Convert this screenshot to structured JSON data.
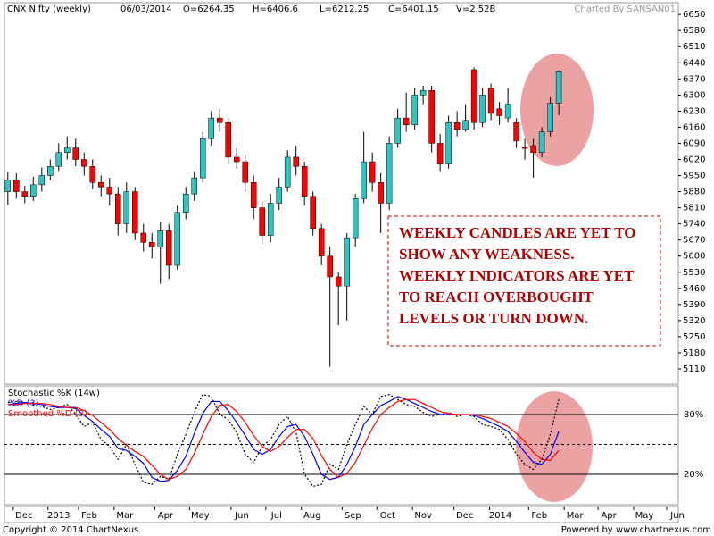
{
  "header": {
    "title": "CNX Nifty (weekly)",
    "date": "06/03/2014",
    "open": "O=6264.35",
    "high": "H=6406.6",
    "low": "L=6212.25",
    "close": "C=6401.15",
    "volume": "V=2.52B",
    "credit": "Charted By SANSAN01"
  },
  "chart_data": [
    {
      "type": "candlestick",
      "up_color": "#2ec4c4",
      "down_color": "#ff0000",
      "categories": [
        null,
        null,
        null,
        null,
        null,
        null,
        null,
        null,
        null,
        null,
        null,
        null,
        null,
        null,
        null,
        null,
        null,
        null,
        null,
        null,
        null,
        null,
        null,
        null,
        null,
        null,
        null,
        null,
        null,
        null,
        null,
        null,
        null,
        null,
        null,
        null,
        null,
        null,
        null,
        null,
        null,
        null,
        null,
        null,
        null,
        null,
        null,
        null,
        null,
        null,
        null,
        null,
        null,
        null,
        null,
        null,
        null,
        null,
        null,
        null,
        null,
        null,
        null,
        null,
        null,
        null
      ],
      "open": [
        5880,
        5930,
        5880,
        5860,
        5910,
        5950,
        5990,
        6050,
        6070,
        6020,
        5990,
        5920,
        5900,
        5870,
        5740,
        5880,
        5700,
        5660,
        5640,
        5710,
        5560,
        5790,
        5870,
        5940,
        6110,
        6200,
        6180,
        6030,
        6010,
        5920,
        5810,
        5690,
        5830,
        5900,
        6030,
        5990,
        5860,
        5720,
        5600,
        5510,
        5470,
        5680,
        5850,
        6010,
        5920,
        5830,
        6090,
        6200,
        6170,
        6300,
        6320,
        6090,
        6000,
        6180,
        6150,
        6410,
        6180,
        6330,
        6240,
        6200,
        6180,
        6075,
        6080,
        6050,
        6140,
        6264.35
      ],
      "high": [
        5965,
        5960,
        5905,
        5945,
        5985,
        6020,
        6090,
        6120,
        6110,
        6050,
        6020,
        5950,
        5940,
        5900,
        5920,
        5900,
        5740,
        5700,
        5750,
        5740,
        5820,
        5900,
        5970,
        6140,
        6230,
        6240,
        6200,
        6070,
        6040,
        5950,
        5840,
        5870,
        5940,
        6060,
        6080,
        6010,
        5880,
        5740,
        5640,
        5530,
        5700,
        5870,
        6140,
        6050,
        5960,
        6120,
        6240,
        6310,
        6330,
        6340,
        6340,
        6130,
        6210,
        6230,
        6260,
        6420,
        6330,
        6350,
        6270,
        6330,
        6200,
        6110,
        6110,
        6160,
        6290,
        6406.6
      ],
      "low": [
        5823,
        5850,
        5830,
        5840,
        5880,
        5930,
        5970,
        6020,
        5990,
        5950,
        5890,
        5860,
        5820,
        5690,
        5700,
        5670,
        5620,
        5590,
        5480,
        5500,
        5540,
        5760,
        5840,
        5920,
        6080,
        6140,
        6000,
        5980,
        5880,
        5760,
        5650,
        5660,
        5800,
        5880,
        5950,
        5820,
        5690,
        5560,
        5119,
        5300,
        5320,
        5640,
        5830,
        5880,
        5700,
        5800,
        6070,
        6140,
        6150,
        6260,
        6050,
        5970,
        5980,
        6120,
        6140,
        6150,
        6160,
        6190,
        6170,
        6180,
        6070,
        6020,
        5940,
        6030,
        6120,
        6212.25
      ],
      "close": [
        5930,
        5880,
        5860,
        5910,
        5950,
        5990,
        6050,
        6070,
        6020,
        5990,
        5920,
        5900,
        5870,
        5740,
        5880,
        5700,
        5660,
        5640,
        5710,
        5560,
        5790,
        5870,
        5940,
        6110,
        6200,
        6180,
        6030,
        6010,
        5920,
        5810,
        5690,
        5830,
        5900,
        6030,
        5990,
        5860,
        5720,
        5600,
        5510,
        5470,
        5680,
        5850,
        6010,
        5920,
        5830,
        6090,
        6200,
        6170,
        6300,
        6320,
        6090,
        6000,
        6180,
        6150,
        6190,
        6180,
        6300,
        6220,
        6210,
        6260,
        6100,
        6068,
        6050,
        6140,
        6264.35,
        6401.15
      ],
      "xlim": [
        -0.4,
        79.1
      ],
      "ylim": [
        5044,
        6701
      ],
      "yticks": [
        6650,
        6580,
        6510,
        6440,
        6370,
        6300,
        6230,
        6160,
        6090,
        6020,
        5950,
        5880,
        5810,
        5740,
        5670,
        5600,
        5530,
        5460,
        5390,
        5320,
        5250,
        5180,
        5110
      ],
      "annotations": [
        "WEEKLY CANDLES ARE YET TO",
        "SHOW ANY WEAKNESS.",
        "WEEKLY INDICATORS ARE YET",
        "TO REACH OVERBOUGHT",
        "LEVELS OR TURN DOWN."
      ]
    },
    {
      "type": "line",
      "series": [
        {
          "name": "Stochastic %K (14w)",
          "color": "#000000",
          "dash": true,
          "values": [
            92,
            93,
            92,
            90,
            88,
            85,
            87,
            90,
            80,
            68,
            72,
            55,
            48,
            35,
            50,
            30,
            12,
            10,
            18,
            15,
            40,
            60,
            82,
            100,
            98,
            80,
            75,
            62,
            40,
            32,
            48,
            55,
            70,
            78,
            62,
            20,
            8,
            10,
            30,
            25,
            50,
            70,
            88,
            80,
            98,
            100,
            95,
            90,
            88,
            82,
            78,
            80,
            82,
            78,
            80,
            78,
            70,
            68,
            65,
            55,
            40,
            30,
            25,
            35,
            60,
            95
          ]
        },
        {
          "name": "%D (3)",
          "color": "#0000ff",
          "dash": false,
          "values": [
            90,
            91,
            92,
            91,
            90,
            88,
            87,
            87,
            86,
            79,
            73,
            65,
            58,
            46,
            44,
            38,
            31,
            17,
            13,
            14,
            24,
            38,
            61,
            81,
            93,
            93,
            84,
            72,
            59,
            45,
            40,
            45,
            58,
            68,
            70,
            58,
            40,
            20,
            15,
            17,
            30,
            48,
            70,
            80,
            89,
            93,
            98,
            95,
            91,
            87,
            83,
            80,
            80,
            80,
            80,
            79,
            76,
            72,
            68,
            63,
            53,
            42,
            32,
            30,
            40,
            63
          ]
        },
        {
          "name": "Smoothed %D (3)",
          "color": "#ff0000",
          "dash": false,
          "values": [
            90,
            90,
            91,
            91,
            91,
            90,
            88,
            87,
            87,
            84,
            79,
            72,
            65,
            56,
            49,
            43,
            38,
            29,
            20,
            15,
            18,
            25,
            41,
            60,
            78,
            89,
            90,
            83,
            72,
            59,
            48,
            43,
            48,
            57,
            65,
            65,
            56,
            39,
            25,
            17,
            21,
            32,
            49,
            66,
            80,
            87,
            93,
            95,
            95,
            91,
            87,
            83,
            81,
            80,
            80,
            80,
            78,
            76,
            72,
            68,
            61,
            53,
            42,
            35,
            34,
            44
          ]
        }
      ],
      "xlim": [
        -0.4,
        79.1
      ],
      "ylim": [
        -10.4,
        108.6
      ],
      "yticks": [
        {
          "value": 80,
          "label": "80%"
        },
        {
          "value": 20,
          "label": "20%"
        }
      ],
      "dashed_line": 50,
      "xticks": [
        {
          "value": 1.9,
          "label": "Dec"
        },
        {
          "value": 6.0,
          "label": "2013"
        },
        {
          "value": 9.6,
          "label": "Feb"
        },
        {
          "value": 13.8,
          "label": "Mar"
        },
        {
          "value": 18.6,
          "label": "Apr"
        },
        {
          "value": 22.7,
          "label": "May"
        },
        {
          "value": 27.6,
          "label": "Jun"
        },
        {
          "value": 31.7,
          "label": "Jul"
        },
        {
          "value": 35.9,
          "label": "Aug"
        },
        {
          "value": 40.7,
          "label": "Sep"
        },
        {
          "value": 44.8,
          "label": "Oct"
        },
        {
          "value": 49.0,
          "label": "Nov"
        },
        {
          "value": 53.9,
          "label": "Dec"
        },
        {
          "value": 58.1,
          "label": "2014"
        },
        {
          "value": 62.7,
          "label": "Feb"
        },
        {
          "value": 66.9,
          "label": "Mar"
        },
        {
          "value": 70.9,
          "label": "Apr"
        },
        {
          "value": 75.1,
          "label": "May"
        },
        {
          "value": 79.0,
          "label": "Jun"
        }
      ]
    }
  ],
  "footer": {
    "left": "Copyright © 2014 ChartNexus",
    "right": "Powered by www.chartnexus.com"
  }
}
